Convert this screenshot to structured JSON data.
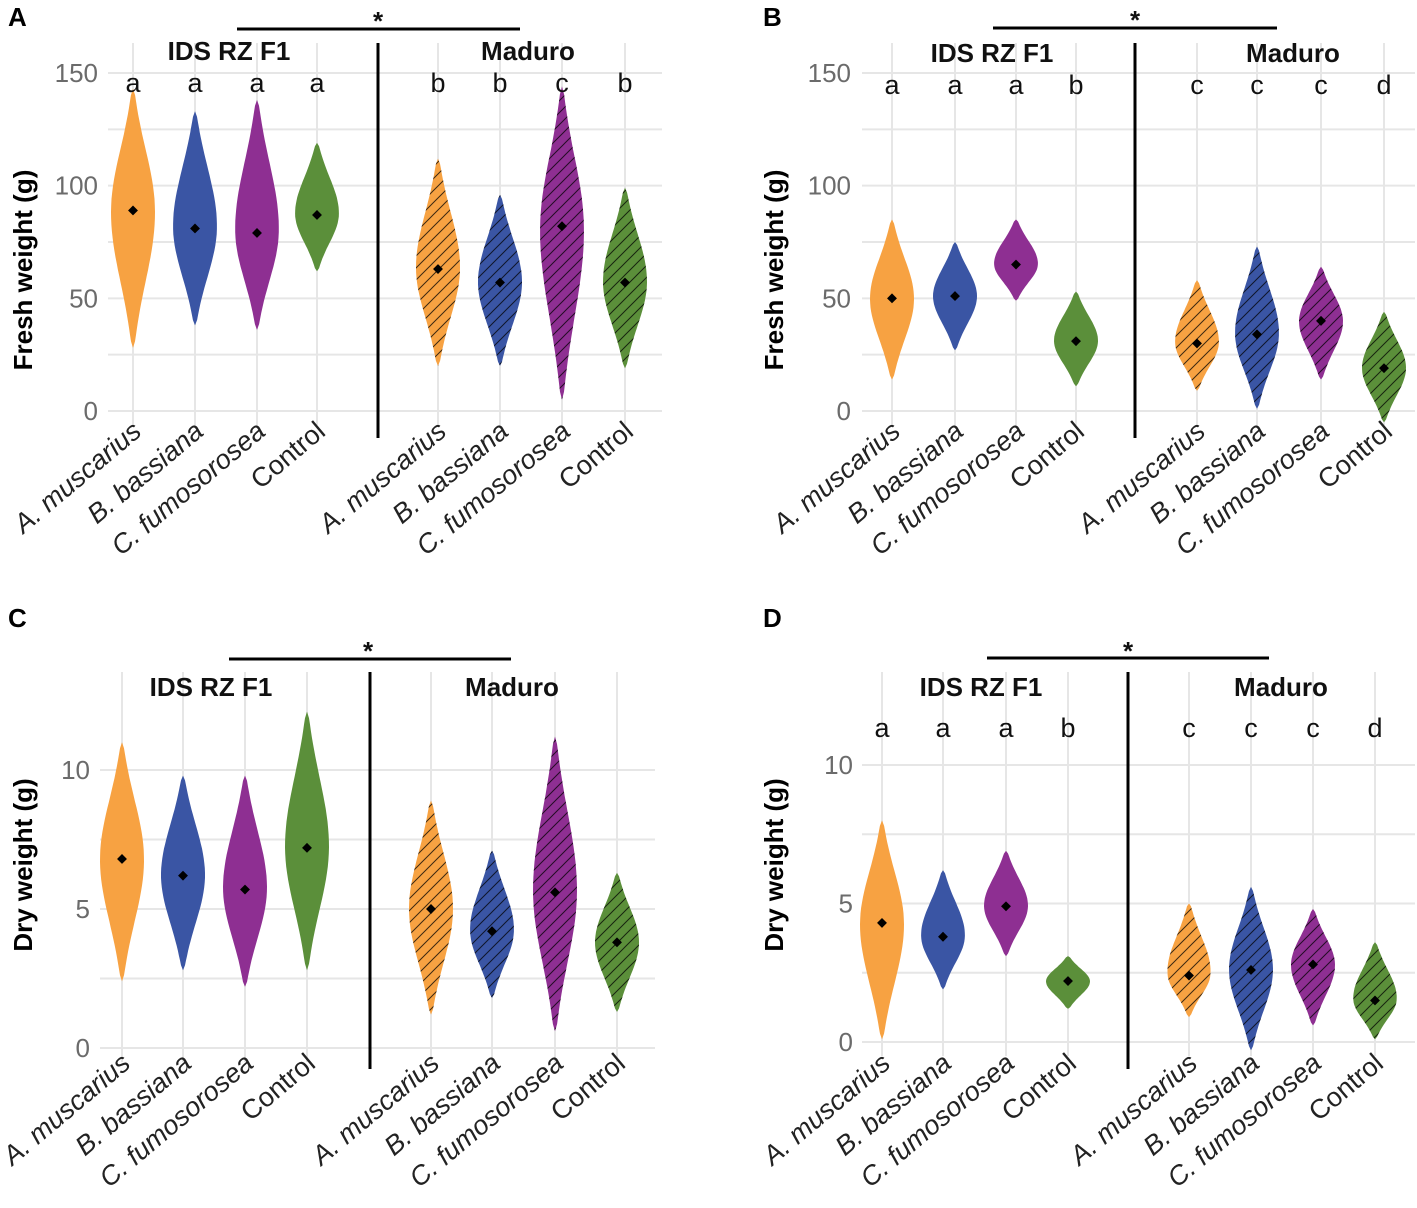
{
  "chart_data": [
    {
      "panel": "A",
      "type": "violin",
      "ylabel": "Fresh weight (g)",
      "ylim": [
        0,
        150
      ],
      "yticks": [
        "0",
        "50",
        "100",
        "150"
      ],
      "group_labels": [
        "IDS RZ F1",
        "Maduro"
      ],
      "significance": "*",
      "categories": [
        "A. muscarius",
        "B. bassiana",
        "C. fumosorosea",
        "Control",
        "A. muscarius",
        "B. bassiana",
        "C. fumosorosea",
        "Control"
      ],
      "groups": [
        "IDS RZ F1",
        "IDS RZ F1",
        "IDS RZ F1",
        "IDS RZ F1",
        "Maduro",
        "Maduro",
        "Maduro",
        "Maduro"
      ],
      "colors": [
        "#F7A242",
        "#3A55A4",
        "#8E2F92",
        "#5B8F3A",
        "#F7A242",
        "#3A55A4",
        "#8E2F92",
        "#5B8F3A"
      ],
      "hatched": [
        false,
        false,
        false,
        false,
        true,
        true,
        true,
        true
      ],
      "means": [
        89,
        81,
        79,
        87,
        63,
        57,
        82,
        57
      ],
      "min": [
        28,
        38,
        36,
        62,
        20,
        20,
        5,
        19
      ],
      "max": [
        143,
        133,
        138,
        119,
        112,
        96,
        144,
        99
      ],
      "letters": [
        "a",
        "a",
        "a",
        "a",
        "b",
        "b",
        "c",
        "b"
      ]
    },
    {
      "panel": "B",
      "type": "violin",
      "ylabel": "Fresh weight (g)",
      "ylim": [
        0,
        150
      ],
      "yticks": [
        "0",
        "50",
        "100",
        "150"
      ],
      "group_labels": [
        "IDS RZ F1",
        "Maduro"
      ],
      "significance": "*",
      "categories": [
        "A. muscarius",
        "B. bassiana",
        "C. fumosorosea",
        "Control",
        "A. muscarius",
        "B. bassiana",
        "C. fumosorosea",
        "Control"
      ],
      "groups": [
        "IDS RZ F1",
        "IDS RZ F1",
        "IDS RZ F1",
        "IDS RZ F1",
        "Maduro",
        "Maduro",
        "Maduro",
        "Maduro"
      ],
      "colors": [
        "#F7A242",
        "#3A55A4",
        "#8E2F92",
        "#5B8F3A",
        "#F7A242",
        "#3A55A4",
        "#8E2F92",
        "#5B8F3A"
      ],
      "hatched": [
        false,
        false,
        false,
        false,
        true,
        true,
        true,
        true
      ],
      "means": [
        50,
        51,
        65,
        31,
        30,
        34,
        40,
        19
      ],
      "min": [
        14,
        27,
        49,
        11,
        9,
        1,
        14,
        -5
      ],
      "max": [
        85,
        75,
        85,
        53,
        58,
        73,
        64,
        44
      ],
      "letters": [
        "a",
        "a",
        "a",
        "b",
        "c",
        "c",
        "c",
        "d"
      ]
    },
    {
      "panel": "C",
      "type": "violin",
      "ylabel": "Dry weight (g)",
      "ylim": [
        0,
        12
      ],
      "yticks": [
        "0",
        "5",
        "10"
      ],
      "group_labels": [
        "IDS RZ F1",
        "Maduro"
      ],
      "significance": "*",
      "categories": [
        "A. muscarius",
        "B. bassiana",
        "C. fumosorosea",
        "Control",
        "A. muscarius",
        "B. bassiana",
        "C. fumosorosea",
        "Control"
      ],
      "groups": [
        "IDS RZ F1",
        "IDS RZ F1",
        "IDS RZ F1",
        "IDS RZ F1",
        "Maduro",
        "Maduro",
        "Maduro",
        "Maduro"
      ],
      "colors": [
        "#F7A242",
        "#3A55A4",
        "#8E2F92",
        "#5B8F3A",
        "#F7A242",
        "#3A55A4",
        "#8E2F92",
        "#5B8F3A"
      ],
      "hatched": [
        false,
        false,
        false,
        false,
        true,
        true,
        true,
        true
      ],
      "means": [
        6.8,
        6.2,
        5.7,
        7.2,
        5.0,
        4.2,
        5.6,
        3.8
      ],
      "min": [
        2.4,
        2.8,
        2.2,
        2.8,
        1.2,
        1.8,
        0.6,
        1.3
      ],
      "max": [
        11.0,
        9.8,
        9.8,
        12.1,
        8.9,
        7.1,
        11.2,
        6.3
      ],
      "letters": []
    },
    {
      "panel": "D",
      "type": "violin",
      "ylabel": "Dry weight (g)",
      "ylim": [
        0,
        12
      ],
      "yticks": [
        "0",
        "5",
        "10"
      ],
      "group_labels": [
        "IDS RZ F1",
        "Maduro"
      ],
      "significance": "*",
      "categories": [
        "A. muscarius",
        "B. bassiana",
        "C. fumosorosea",
        "Control",
        "A. muscarius",
        "B. bassiana",
        "C. fumosorosea",
        "Control"
      ],
      "groups": [
        "IDS RZ F1",
        "IDS RZ F1",
        "IDS RZ F1",
        "IDS RZ F1",
        "Maduro",
        "Maduro",
        "Maduro",
        "Maduro"
      ],
      "colors": [
        "#F7A242",
        "#3A55A4",
        "#8E2F92",
        "#5B8F3A",
        "#F7A242",
        "#3A55A4",
        "#8E2F92",
        "#5B8F3A"
      ],
      "hatched": [
        false,
        false,
        false,
        false,
        true,
        true,
        true,
        true
      ],
      "means": [
        4.3,
        3.8,
        4.9,
        2.2,
        2.4,
        2.6,
        2.8,
        1.5
      ],
      "min": [
        0.1,
        1.9,
        3.1,
        1.2,
        0.9,
        -0.3,
        0.6,
        0.1
      ],
      "max": [
        8.0,
        6.2,
        6.9,
        3.1,
        5.0,
        5.6,
        4.8,
        3.6
      ],
      "letters": [
        "a",
        "a",
        "a",
        "b",
        "c",
        "c",
        "c",
        "d"
      ]
    }
  ]
}
